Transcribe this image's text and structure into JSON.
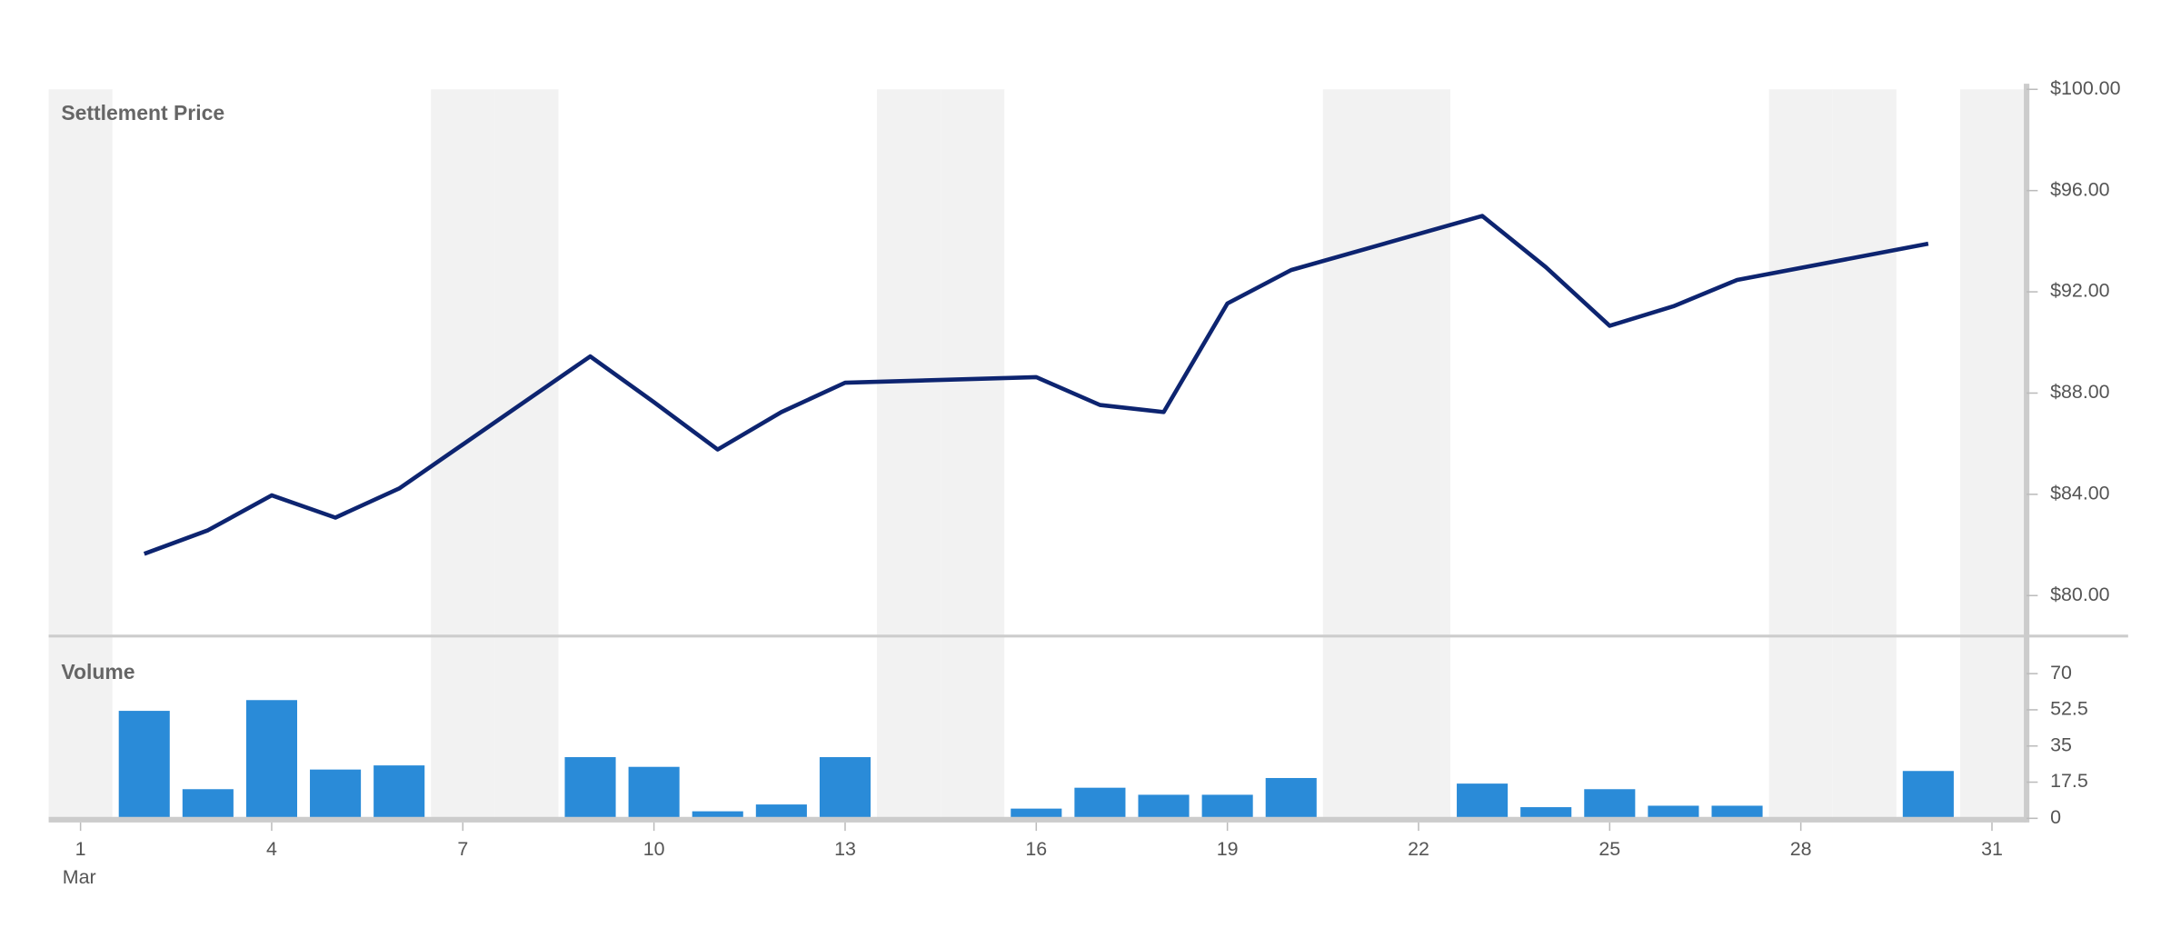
{
  "chart_data": [
    {
      "type": "line",
      "title": "Settlement Price",
      "x": [
        2,
        3,
        4,
        5,
        6,
        9,
        10,
        11,
        12,
        13,
        16,
        17,
        18,
        19,
        20,
        23,
        24,
        25,
        26,
        27,
        30
      ],
      "values": [
        81.65,
        82.58,
        83.96,
        83.08,
        84.23,
        89.45,
        87.64,
        85.77,
        87.25,
        88.41,
        88.63,
        87.53,
        87.25,
        91.54,
        92.86,
        95.0,
        92.97,
        90.66,
        91.43,
        92.47,
        93.9
      ],
      "color": "#0d2470",
      "xlim": [
        0.5,
        31.5
      ],
      "ylim": [
        78.4,
        100
      ],
      "yticks": [
        {
          "value": 80,
          "label": "$80.00"
        },
        {
          "value": 84,
          "label": "$84.00"
        },
        {
          "value": 88,
          "label": "$88.00"
        },
        {
          "value": 92,
          "label": "$92.00"
        },
        {
          "value": 96,
          "label": "$96.00"
        },
        {
          "value": 100,
          "label": "$100.00"
        }
      ],
      "shaded_x": [
        1,
        7,
        8,
        14,
        15,
        21,
        22,
        28,
        29,
        31
      ],
      "shade_color": "#f2f2f2"
    },
    {
      "type": "bar",
      "title": "Volume",
      "x": [
        2,
        3,
        4,
        5,
        6,
        9,
        10,
        11,
        12,
        13,
        16,
        17,
        18,
        19,
        20,
        23,
        24,
        25,
        26,
        27,
        30
      ],
      "values": [
        52,
        14.1,
        57.2,
        23.6,
        25.6,
        29.6,
        24.9,
        3.4,
        6.7,
        29.6,
        4.7,
        14.8,
        11.4,
        11.4,
        19.5,
        16.8,
        5.4,
        14.1,
        6.1,
        6.1,
        22.9
      ],
      "color": "#2a8bd8",
      "xlim": [
        0.5,
        31.5
      ],
      "xticks": [
        1,
        4,
        7,
        10,
        13,
        16,
        19,
        22,
        25,
        28,
        31
      ],
      "x_sublabel": "Mar",
      "ylim": [
        0,
        87.5
      ],
      "yticks": [
        0,
        17.5,
        35,
        52.5,
        70
      ]
    }
  ]
}
